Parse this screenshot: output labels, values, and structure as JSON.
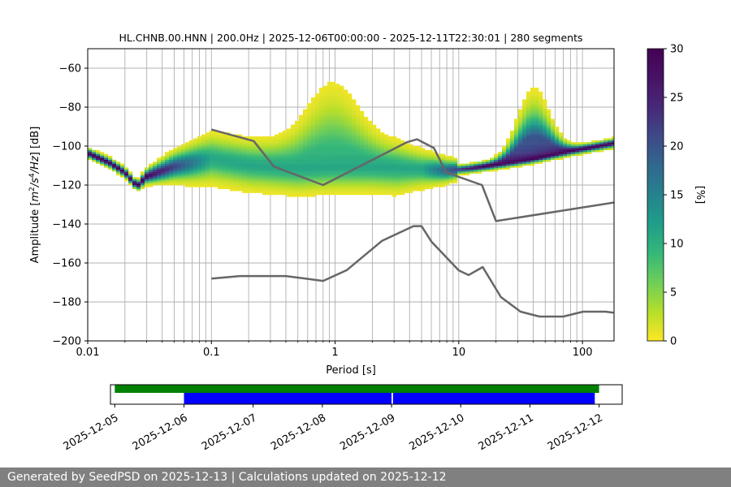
{
  "chart_data": [
    {
      "type": "heatmap",
      "title": "HL.CHNB.00.HNN | 200.0Hz | 2025-12-06T00:00:00 - 2025-12-11T22:30:01 | 280 segments",
      "xlabel": "Period [s]",
      "ylabel": "Amplitude [m²/s⁴/Hz] [dB]",
      "x_scale": "log",
      "xlim": [
        0.01,
        180
      ],
      "ylim": [
        -200,
        -50
      ],
      "x_ticks": [
        "0.01",
        "0.1",
        "1",
        "10",
        "100"
      ],
      "y_ticks": [
        "−60",
        "−80",
        "−100",
        "−120",
        "−140",
        "−160",
        "−180",
        "−200"
      ],
      "grid": "x major and minor",
      "colorbar": {
        "label": "[%]",
        "range": [
          0,
          30
        ],
        "ticks": [
          "0",
          "5",
          "10",
          "15",
          "20",
          "25",
          "30"
        ],
        "colormap": "viridis_r"
      },
      "psd_mode": {
        "name": "mode",
        "period": [
          0.01,
          0.015,
          0.02,
          0.025,
          0.03,
          0.05,
          0.1,
          0.2,
          0.5,
          1,
          2,
          4,
          8,
          12,
          20,
          40,
          80,
          180
        ],
        "db": [
          -104,
          -109,
          -114,
          -121,
          -116,
          -111,
          -107,
          -110,
          -112,
          -111,
          -111,
          -112,
          -113,
          -112,
          -110,
          -107,
          -103,
          -99
        ]
      },
      "noise_models": [
        {
          "name": "NHNM",
          "period": [
            0.1,
            0.22,
            0.32,
            0.8,
            3.8,
            4.6,
            6.3,
            7.9,
            15.4,
            20,
            354.8
          ],
          "db": [
            -91.5,
            -97.4,
            -110.5,
            -120,
            -98,
            -96.5,
            -101,
            -113.5,
            -120,
            -138.5,
            -126
          ]
        },
        {
          "name": "NLNM",
          "period": [
            0.1,
            0.17,
            0.4,
            0.8,
            1.24,
            2.4,
            4.3,
            5,
            6,
            10,
            12,
            15.6,
            21.9,
            31.6,
            45,
            70,
            101,
            154,
            178
          ],
          "db": [
            -168,
            -166.7,
            -166.7,
            -169.2,
            -163.7,
            -148.6,
            -141.1,
            -141.1,
            -149,
            -163.8,
            -166.2,
            -162.1,
            -177.5,
            -185,
            -187.5,
            -187.5,
            -185,
            -185,
            -185.5
          ]
        }
      ]
    },
    {
      "type": "bar",
      "title": "",
      "x_type": "date",
      "xlim": [
        "2025-12-04T22:30",
        "2025-12-12T08:00"
      ],
      "x_ticks": [
        "2025-12-05",
        "2025-12-06",
        "2025-12-07",
        "2025-12-08",
        "2025-12-09",
        "2025-12-10",
        "2025-12-11",
        "2025-12-12"
      ],
      "series": [
        {
          "role": "available data",
          "color": "#008000",
          "intervals": [
            [
              "2025-12-05T00:00",
              "2025-12-12T00:00"
            ]
          ]
        },
        {
          "role": "used for PSD",
          "color": "#0000ff",
          "intervals": [
            [
              "2025-12-06T00:00",
              "2025-12-09T00:00"
            ],
            [
              "2025-12-09T00:30",
              "2025-12-11T22:30"
            ]
          ]
        }
      ]
    }
  ],
  "footer": "Generated by SeedPSD on 2025-12-13 | Calculations updated on 2025-12-12"
}
